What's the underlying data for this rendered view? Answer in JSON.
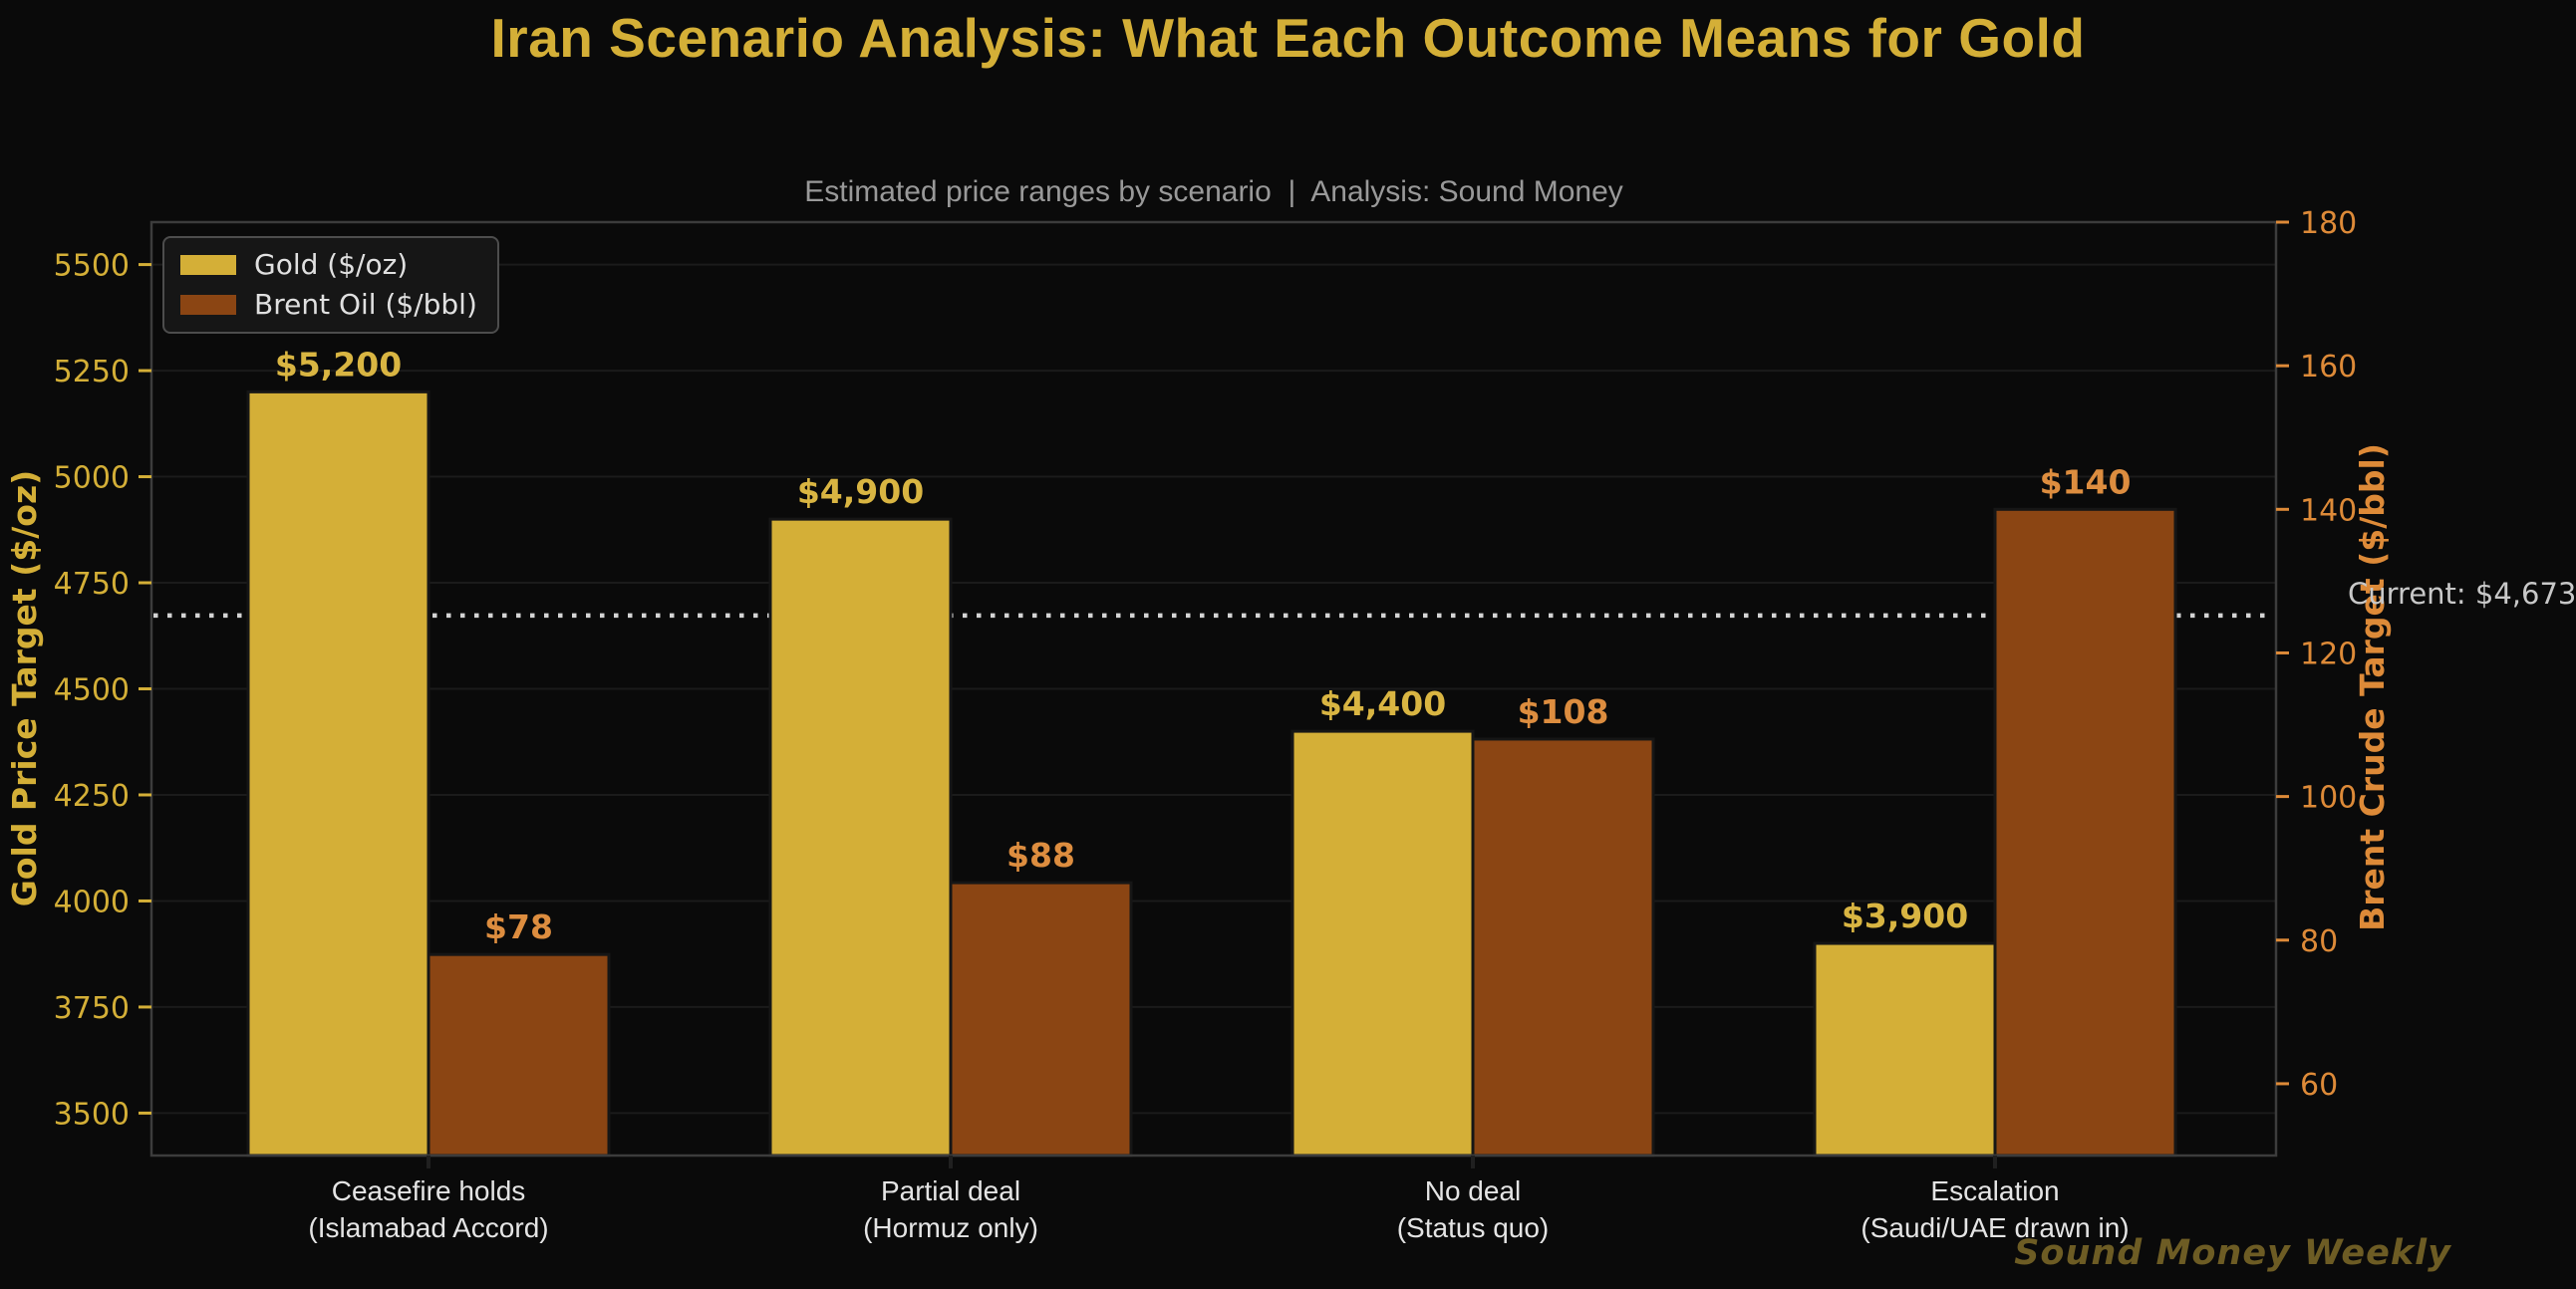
{
  "chart_data": {
    "type": "bar",
    "title": "Iran Scenario Analysis: What Each Outcome Means for Gold",
    "subtitle": "Estimated price ranges by scenario  |  Analysis: Sound Money",
    "watermark": "Sound Money Weekly",
    "categories": [
      "Ceasefire holds\n(Islamabad Accord)",
      "Partial deal\n(Hormuz only)",
      "No deal\n(Status quo)",
      "Escalation\n(Saudi/UAE drawn in)"
    ],
    "series": [
      {
        "name": "Gold ($/oz)",
        "axis": "left",
        "values": [
          5200,
          4900,
          4400,
          3900
        ],
        "value_labels": [
          "$5,200",
          "$4,900",
          "$4,400",
          "$3,900"
        ],
        "bar_color": "#d4af37",
        "label_color": "#d9b542"
      },
      {
        "name": "Brent Oil ($/bbl)",
        "axis": "right",
        "values": [
          78,
          88,
          108,
          140
        ],
        "value_labels": [
          "$78",
          "$88",
          "$108",
          "$140"
        ],
        "bar_color": "#8b4513",
        "label_color": "#dd8d3f"
      }
    ],
    "left_axis": {
      "label": "Gold Price Target ($/oz)",
      "ylim": [
        3400,
        5600
      ],
      "ticks": [
        3500,
        3750,
        4000,
        4250,
        4500,
        4750,
        5000,
        5250,
        5500
      ],
      "color": "#d4af37"
    },
    "right_axis": {
      "label": "Brent Crude Target ($/bbl)",
      "ylim": [
        50,
        180
      ],
      "ticks": [
        60,
        80,
        100,
        120,
        140,
        160,
        180
      ],
      "color": "#dd8a38"
    },
    "reference_line": {
      "axis": "left",
      "value": 4673,
      "label": "Current: $4,673",
      "color": "#d4d4d4",
      "style": "dotted"
    },
    "legend_position": "upper left",
    "grid": {
      "axis": "y",
      "color": "#1b1b1b"
    },
    "colors": {
      "background": "#0a0a0a",
      "title": "#d4af37",
      "subtitle": "#999999",
      "category_labels": "#e4e4e4",
      "spine": "#3c3c3c",
      "watermark": "#6d5c24",
      "reference_label": "#c8c8c8"
    }
  }
}
